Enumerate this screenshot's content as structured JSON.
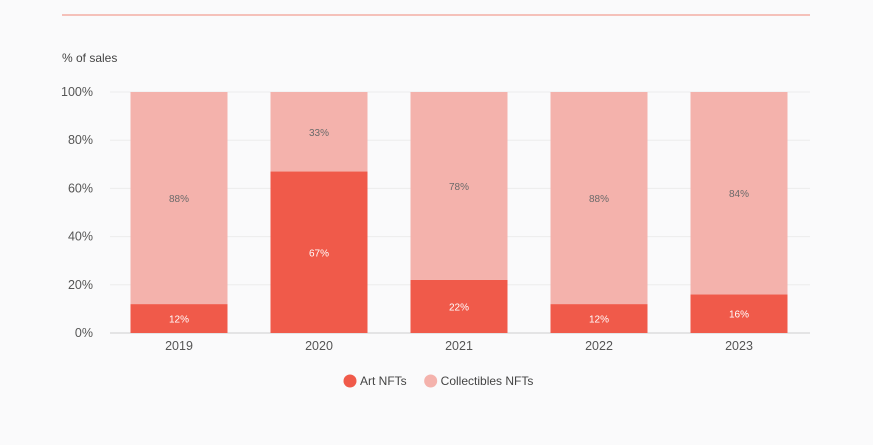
{
  "chart_data": {
    "type": "bar",
    "stacked": true,
    "ylabel": "% of sales",
    "categories": [
      "2019",
      "2020",
      "2021",
      "2022",
      "2023"
    ],
    "ylim": [
      0,
      100
    ],
    "yticks": [
      "0%",
      "20%",
      "40%",
      "60%",
      "80%",
      "100%"
    ],
    "grid": true,
    "legend_position": "bottom",
    "series": [
      {
        "name": "Art NFTs",
        "color": "#f05a4a",
        "values": [
          12,
          67,
          22,
          12,
          16
        ],
        "labels": [
          "12%",
          "67%",
          "22%",
          "12%",
          "16%"
        ]
      },
      {
        "name": "Collectibles NFTs",
        "color": "#f4b2ac",
        "values": [
          88,
          33,
          78,
          88,
          84
        ],
        "labels": [
          "88%",
          "33%",
          "78%",
          "88%",
          "84%"
        ]
      }
    ],
    "colors": {
      "top_rule": "#f08878",
      "grid": "#ececec"
    }
  }
}
